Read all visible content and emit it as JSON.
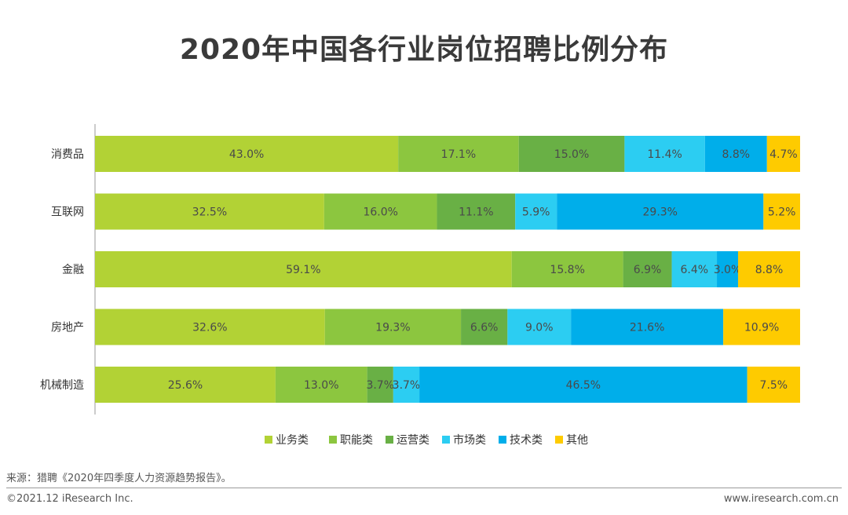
{
  "title": "2020年中国各行业岗位招聘比例分布",
  "source": "来源：猎聘《2020年四季度人力资源趋势报告》。",
  "copyright": "©2021.12 iResearch Inc.",
  "website": "www.iresearch.com.cn",
  "chart_data": {
    "type": "bar",
    "orientation": "horizontal",
    "stacked": true,
    "categories": [
      "消费品",
      "互联网",
      "金融",
      "房地产",
      "机械制造"
    ],
    "series": [
      {
        "name": "业务类",
        "color": "#b2d235",
        "values": [
          43.0,
          32.5,
          59.1,
          32.6,
          25.6
        ]
      },
      {
        "name": "职能类",
        "color": "#8cc63f",
        "values": [
          17.1,
          16.0,
          15.8,
          19.3,
          13.0
        ]
      },
      {
        "name": "运营类",
        "color": "#69b045",
        "values": [
          15.0,
          11.1,
          6.9,
          6.6,
          3.7
        ]
      },
      {
        "name": "市场类",
        "color": "#2ccdf2",
        "values": [
          11.4,
          5.9,
          6.4,
          9.0,
          3.7
        ]
      },
      {
        "name": "技术类",
        "color": "#00aeea",
        "values": [
          8.8,
          29.3,
          3.0,
          21.6,
          46.5
        ]
      },
      {
        "name": "其他",
        "color": "#fecb00",
        "values": [
          4.7,
          5.2,
          8.8,
          10.9,
          7.5
        ]
      }
    ],
    "xlim": [
      0,
      100
    ],
    "value_format": "0.0%",
    "legend_position": "bottom",
    "grid": false
  }
}
